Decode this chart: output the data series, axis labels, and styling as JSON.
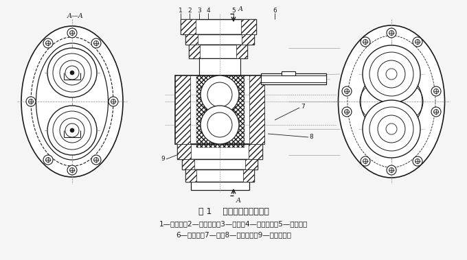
{
  "bg_color": "#f5f5f5",
  "line_color": "#1a1a1a",
  "title_text": "图 1    外噌合齿轮泵的结构",
  "caption_line1": "1—后泵盖；2—滚针轴承；3—泵体；4—主动齿轮；5—前泵盖；",
  "caption_line2": "6—传动轴；7—键；8—从动齿轮；9—环形卸载槽",
  "fig_width": 6.8,
  "fig_height": 3.79,
  "dpi": 100
}
